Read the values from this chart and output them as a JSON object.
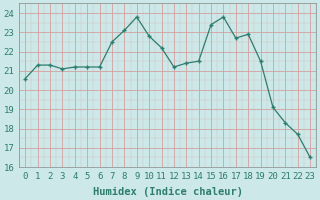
{
  "x": [
    0,
    1,
    2,
    3,
    4,
    5,
    6,
    7,
    8,
    9,
    10,
    11,
    12,
    13,
    14,
    15,
    16,
    17,
    18,
    19,
    20,
    21,
    22,
    23
  ],
  "y": [
    20.6,
    21.3,
    21.3,
    21.1,
    21.2,
    21.2,
    21.2,
    22.5,
    23.1,
    23.8,
    22.8,
    22.2,
    21.2,
    21.4,
    21.5,
    23.4,
    23.8,
    22.7,
    22.9,
    21.5,
    19.1,
    18.3,
    17.7,
    16.5
  ],
  "xlabel": "Humidex (Indice chaleur)",
  "xlim": [
    -0.5,
    23.5
  ],
  "ylim": [
    16,
    24.5
  ],
  "yticks": [
    16,
    17,
    18,
    19,
    20,
    21,
    22,
    23,
    24
  ],
  "xticks": [
    0,
    1,
    2,
    3,
    4,
    5,
    6,
    7,
    8,
    9,
    10,
    11,
    12,
    13,
    14,
    15,
    16,
    17,
    18,
    19,
    20,
    21,
    22,
    23
  ],
  "line_color": "#2e7d6e",
  "marker_color": "#2e7d6e",
  "grid_color_major": "#d4a0a0",
  "grid_color_minor": "#d4c0c0",
  "plot_bg": "#cce8e8",
  "fig_bg": "#cce8e8",
  "font_color": "#2e7d6e",
  "font_family": "monospace",
  "xlabel_fontsize": 7.5,
  "tick_fontsize": 6.5
}
